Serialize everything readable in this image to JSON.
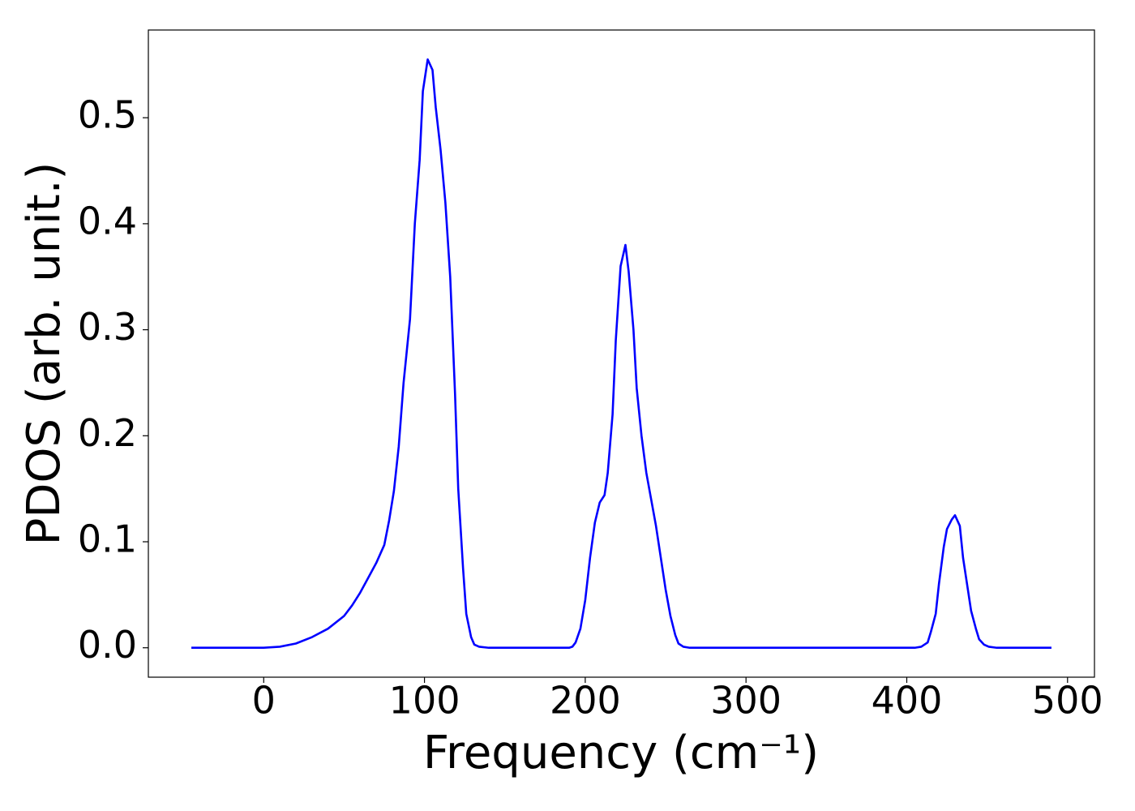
{
  "chart_data": {
    "type": "line",
    "x_label": "Frequency (cm⁻¹)",
    "y_label": "PDOS (arb. unit.)",
    "x": [
      -45,
      0,
      10,
      20,
      30,
      40,
      50,
      55,
      60,
      65,
      70,
      75,
      78,
      81,
      84,
      87,
      91,
      94,
      97,
      99,
      102,
      105,
      107,
      110,
      113,
      116,
      119,
      121,
      124,
      126,
      129,
      131,
      134,
      140,
      190,
      192,
      194,
      197,
      200,
      203,
      206,
      209,
      212,
      214,
      217,
      219,
      222,
      225,
      227,
      230,
      232,
      235,
      238,
      241,
      244,
      247,
      250,
      253,
      256,
      258,
      261,
      265,
      405,
      409,
      413,
      415,
      418,
      420,
      423,
      425,
      428,
      430,
      433,
      435,
      438,
      440,
      443,
      445,
      448,
      451,
      456,
      490
    ],
    "series": [
      {
        "color": "#0000ff",
        "values": [
          0,
          0,
          0.001,
          0.004,
          0.01,
          0.018,
          0.03,
          0.04,
          0.052,
          0.066,
          0.08,
          0.097,
          0.12,
          0.148,
          0.19,
          0.25,
          0.31,
          0.4,
          0.46,
          0.525,
          0.555,
          0.545,
          0.51,
          0.47,
          0.42,
          0.35,
          0.24,
          0.15,
          0.075,
          0.032,
          0.01,
          0.003,
          0.001,
          0,
          0,
          0.001,
          0.005,
          0.018,
          0.045,
          0.085,
          0.118,
          0.137,
          0.144,
          0.165,
          0.22,
          0.29,
          0.36,
          0.38,
          0.355,
          0.3,
          0.245,
          0.2,
          0.165,
          0.14,
          0.115,
          0.085,
          0.055,
          0.03,
          0.012,
          0.004,
          0.001,
          0,
          0,
          0.001,
          0.005,
          0.015,
          0.032,
          0.06,
          0.095,
          0.112,
          0.121,
          0.125,
          0.115,
          0.085,
          0.055,
          0.035,
          0.018,
          0.008,
          0.003,
          0.001,
          0,
          0
        ]
      }
    ],
    "xlim": [
      -71.75,
      516.75
    ],
    "ylim": [
      -0.02775,
      0.58275
    ],
    "xticks": [
      0,
      100,
      200,
      300,
      400,
      500
    ],
    "yticks": [
      {
        "value": 0,
        "label": "0.0"
      },
      0.1,
      0.2,
      0.3,
      0.4,
      0.5
    ]
  }
}
